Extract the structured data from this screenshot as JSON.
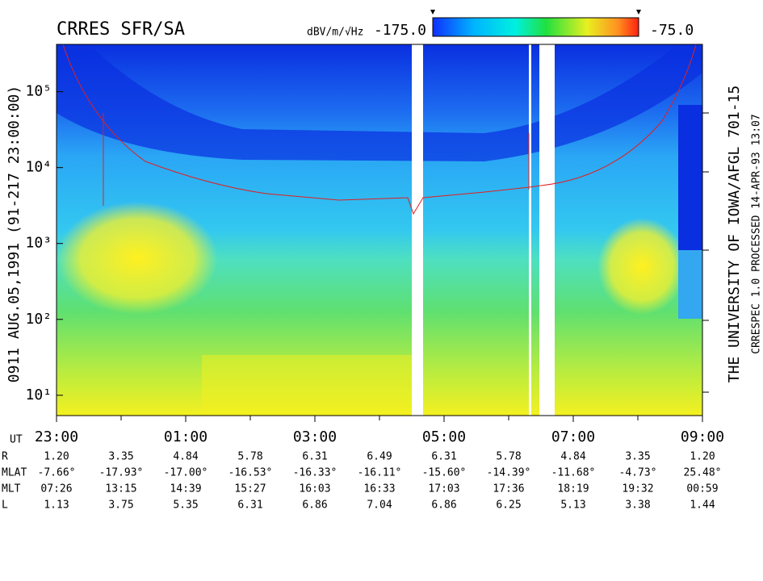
{
  "chart_data": {
    "type": "spectrogram",
    "title": "CRRES SFR/SA",
    "side_label": "0911  AUG.05,1991  (91-217 23:00:00)",
    "institution": "THE UNIVERSITY OF IOWA/AFGL 701-15",
    "processing": "CRRESPEC 1.0   PROCESSED 14-APR-93  13:07",
    "colorbar": {
      "label": "dBV/m/√Hz",
      "lim": [
        {
          "value": -175,
          "label": "-175.0"
        },
        {
          "value": -75,
          "label": "-75.0"
        }
      ]
    },
    "yscale": "log",
    "ylim": [
      5.4,
      420000
    ],
    "yticks": [
      {
        "value": 10,
        "label": "10¹"
      },
      {
        "value": 100,
        "label": "10²"
      },
      {
        "value": 1000,
        "label": "10³"
      },
      {
        "value": 10000,
        "label": "10⁴"
      },
      {
        "value": 100000,
        "label": "10⁵"
      }
    ],
    "xlim": [
      "23:00",
      "09:00"
    ],
    "xticks": [
      "23:00",
      "01:00",
      "03:00",
      "05:00",
      "07:00",
      "09:00"
    ]
  },
  "ephemeris": {
    "axis_label": "UT",
    "rows": [
      {
        "label": "R",
        "values": [
          "1.20",
          "3.35",
          "4.84",
          "5.78",
          "6.31",
          "6.49",
          "6.31",
          "5.78",
          "4.84",
          "3.35",
          "1.20"
        ]
      },
      {
        "label": "MLAT",
        "values": [
          "-7.66°",
          "-17.93°",
          "-17.00°",
          "-16.53°",
          "-16.33°",
          "-16.11°",
          "-15.60°",
          "-14.39°",
          "-11.68°",
          "-4.73°",
          "25.48°"
        ]
      },
      {
        "label": "MLT",
        "values": [
          "07:26",
          "13:15",
          "14:39",
          "15:27",
          "16:03",
          "16:33",
          "17:03",
          "17:36",
          "18:19",
          "19:32",
          "00:59"
        ]
      },
      {
        "label": "L",
        "values": [
          "1.13",
          "3.75",
          "5.35",
          "6.31",
          "6.86",
          "7.04",
          "6.86",
          "6.25",
          "5.13",
          "3.38",
          "1.44"
        ]
      }
    ]
  }
}
